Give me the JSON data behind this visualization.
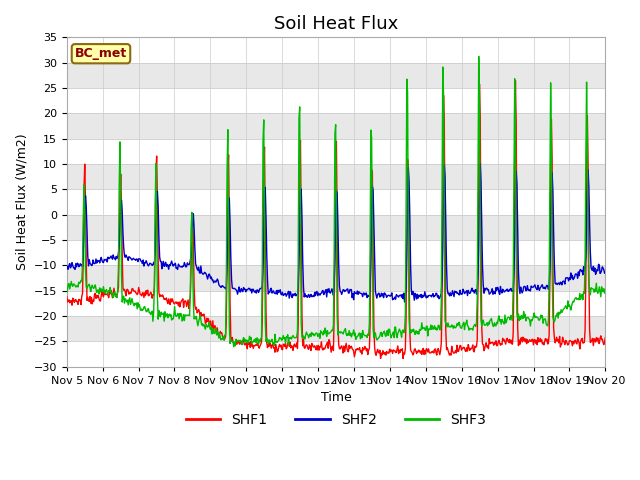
{
  "title": "Soil Heat Flux",
  "ylabel": "Soil Heat Flux (W/m2)",
  "xlabel": "Time",
  "ylim": [
    -30,
    35
  ],
  "xlim": [
    0,
    15
  ],
  "x_tick_labels": [
    "Nov 5",
    "Nov 6",
    "Nov 7",
    "Nov 8",
    "Nov 9",
    "Nov 10",
    "Nov 11",
    "Nov 12",
    "Nov 13",
    "Nov 14",
    "Nov 15",
    "Nov 16",
    "Nov 17",
    "Nov 18",
    "Nov 19",
    "Nov 20"
  ],
  "bc_met_label": "BC_met",
  "legend_labels": [
    "SHF1",
    "SHF2",
    "SHF3"
  ],
  "line_colors": [
    "#ff0000",
    "#0000cc",
    "#00bb00"
  ],
  "background_color": "#ffffff",
  "plot_bg_color": "#ffffff",
  "band_colors": [
    "#ffffff",
    "#e8e8e8"
  ],
  "gridline_color": "#cccccc",
  "title_fontsize": 13,
  "label_fontsize": 9,
  "tick_fontsize": 8,
  "legend_fontsize": 10,
  "bc_met_fontsize": 9
}
